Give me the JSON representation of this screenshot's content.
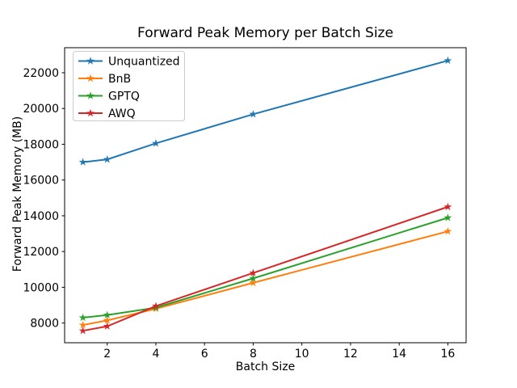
{
  "chart_data": {
    "type": "line",
    "title": "Forward Peak Memory per Batch Size",
    "xlabel": "Batch Size",
    "ylabel": "Forward Peak Memory (MB)",
    "x": [
      1,
      2,
      4,
      8,
      16
    ],
    "series": [
      {
        "name": "Unquantized",
        "color": "#1f77b4",
        "values": [
          17000,
          17150,
          18050,
          19680,
          22680
        ]
      },
      {
        "name": "BnB",
        "color": "#ff7f0e",
        "values": [
          7890,
          8150,
          8800,
          10250,
          13130
        ]
      },
      {
        "name": "GPTQ",
        "color": "#2ca02c",
        "values": [
          8300,
          8450,
          8860,
          10500,
          13890
        ]
      },
      {
        "name": "AWQ",
        "color": "#d62728",
        "values": [
          7570,
          7820,
          8950,
          10800,
          14500
        ]
      }
    ],
    "xticks": [
      2,
      4,
      6,
      8,
      10,
      12,
      14,
      16
    ],
    "yticks": [
      8000,
      10000,
      12000,
      14000,
      16000,
      18000,
      20000,
      22000
    ],
    "xlim": [
      0.25,
      16.75
    ],
    "ylim": [
      6900,
      23400
    ],
    "grid": false,
    "marker": "star",
    "line_width": 2,
    "legend": {
      "position": "upper-left",
      "entries": [
        "Unquantized",
        "BnB",
        "GPTQ",
        "AWQ"
      ]
    },
    "axis_color": "#000000",
    "background_color": "#ffffff",
    "legend_border_color": "#cccccc"
  }
}
